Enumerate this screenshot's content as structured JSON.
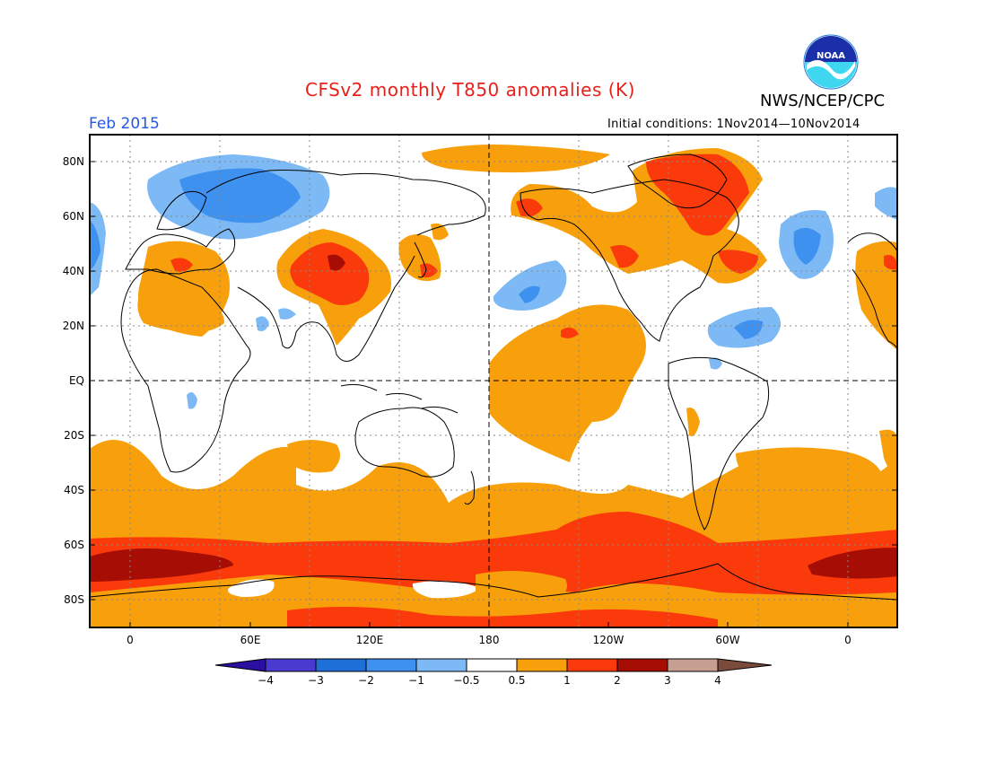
{
  "title": "CFSv2 monthly T850 anomalies (K)",
  "agency": "NWS/NCEP/CPC",
  "logo_text": "NOAA",
  "month": "Feb 2015",
  "initial_conditions": "Initial conditions: 1Nov2014—10Nov2014",
  "colors": {
    "title": "#e8201c",
    "month": "#2456e8",
    "neg4": "#2b0fa0",
    "neg3": "#4a3ad0",
    "neg2": "#1f6fd8",
    "neg1": "#3f91f0",
    "neg05": "#7dbaf5",
    "neutral": "#ffffff",
    "pos05": "#f8a00b",
    "pos1": "#fa3a0a",
    "pos2": "#a50d05",
    "pos3": "#c79f91",
    "pos4": "#7a4a3a"
  },
  "map": {
    "lat_labels": [
      "80N",
      "60N",
      "40N",
      "20N",
      "EQ",
      "20S",
      "40S",
      "60S",
      "80S"
    ],
    "lon_labels": [
      "0",
      "60E",
      "120E",
      "180",
      "120W",
      "60W",
      "0"
    ],
    "shading_bins": [
      {
        "range": "< -4",
        "color": "#2b0fa0"
      },
      {
        "range": "-4 to -3",
        "color": "#4a3ad0"
      },
      {
        "range": "-3 to -2",
        "color": "#1f6fd8"
      },
      {
        "range": "-2 to -1",
        "color": "#3f91f0"
      },
      {
        "range": "-1 to -0.5",
        "color": "#7dbaf5"
      },
      {
        "range": "-0.5 to 0.5",
        "color": "#ffffff"
      },
      {
        "range": "0.5 to 1",
        "color": "#f8a00b"
      },
      {
        "range": "1 to 2",
        "color": "#fa3a0a"
      },
      {
        "range": "2 to 3",
        "color": "#a50d05"
      },
      {
        "range": "3 to 4",
        "color": "#c79f91"
      },
      {
        "range": "> 4",
        "color": "#7a4a3a"
      }
    ]
  },
  "colorbar": {
    "labels": [
      "−4",
      "−3",
      "−2",
      "−1",
      "−0.5",
      "0.5",
      "1",
      "2",
      "3",
      "4"
    ],
    "colors": [
      "#2b0fa0",
      "#4a3ad0",
      "#1f6fd8",
      "#3f91f0",
      "#7dbaf5",
      "#ffffff",
      "#f8a00b",
      "#fa3a0a",
      "#a50d05",
      "#c79f91",
      "#7a4a3a"
    ]
  }
}
